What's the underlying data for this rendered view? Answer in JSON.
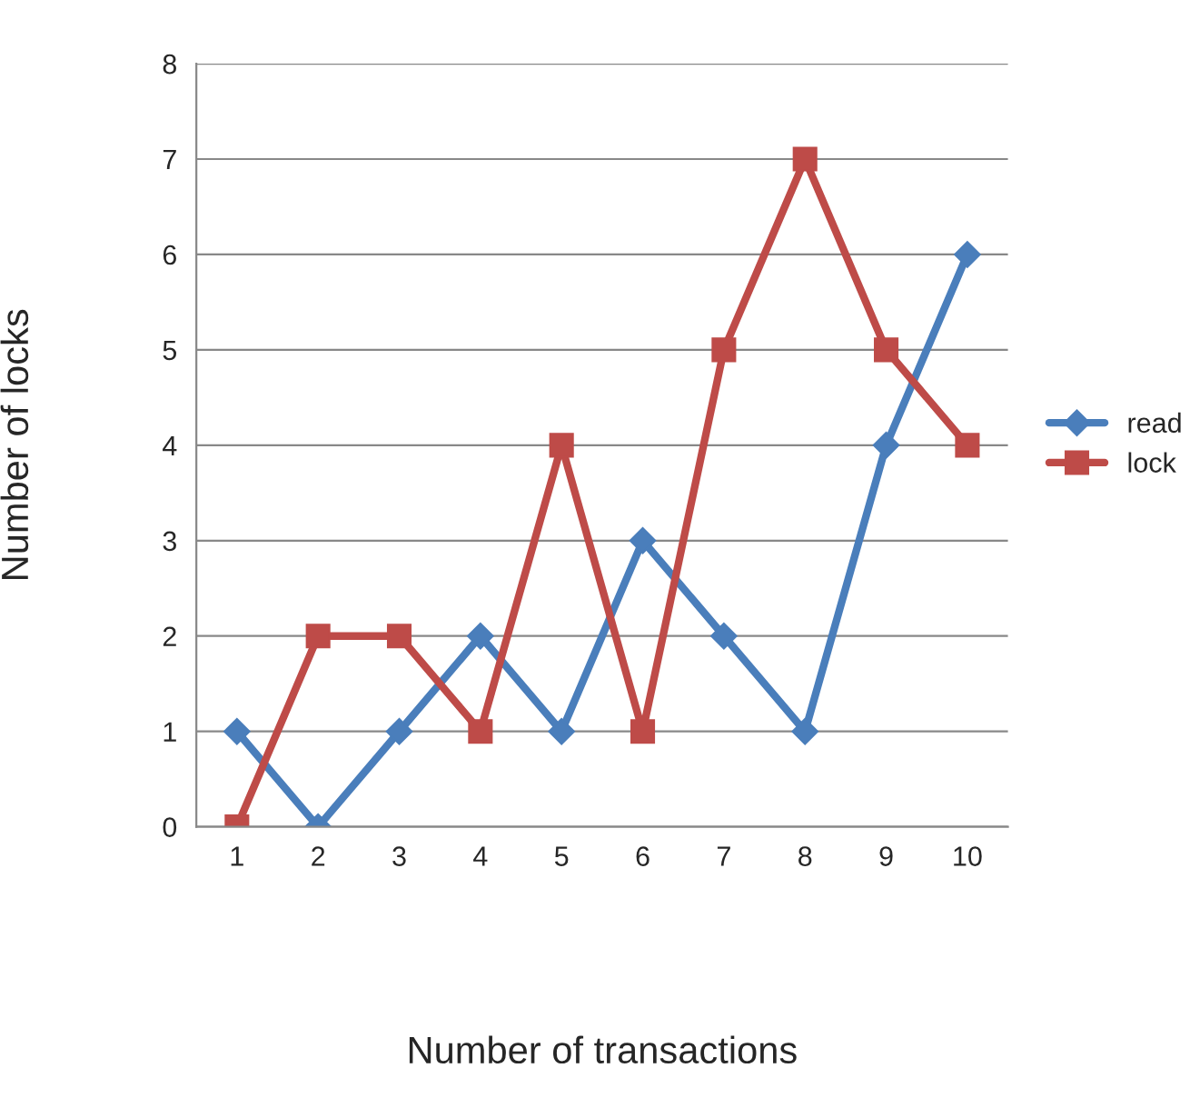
{
  "chart_data": {
    "type": "line",
    "xlabel": "Number of transactions",
    "ylabel": "Number of locks",
    "categories": [
      "1",
      "2",
      "3",
      "4",
      "5",
      "6",
      "7",
      "8",
      "9",
      "10"
    ],
    "series": [
      {
        "name": "read",
        "color": "#4a7ebb",
        "marker": "diamond",
        "values": [
          1,
          0,
          1,
          2,
          1,
          3,
          2,
          1,
          4,
          6
        ]
      },
      {
        "name": "lock",
        "color": "#be4b48",
        "marker": "square",
        "values": [
          0,
          2,
          2,
          1,
          4,
          1,
          5,
          7,
          5,
          4
        ]
      }
    ],
    "ylim": [
      0,
      8
    ],
    "yticks": [
      0,
      1,
      2,
      3,
      4,
      5,
      6,
      7,
      8
    ],
    "grid": "y",
    "legend": "right",
    "line_style": "solid"
  }
}
